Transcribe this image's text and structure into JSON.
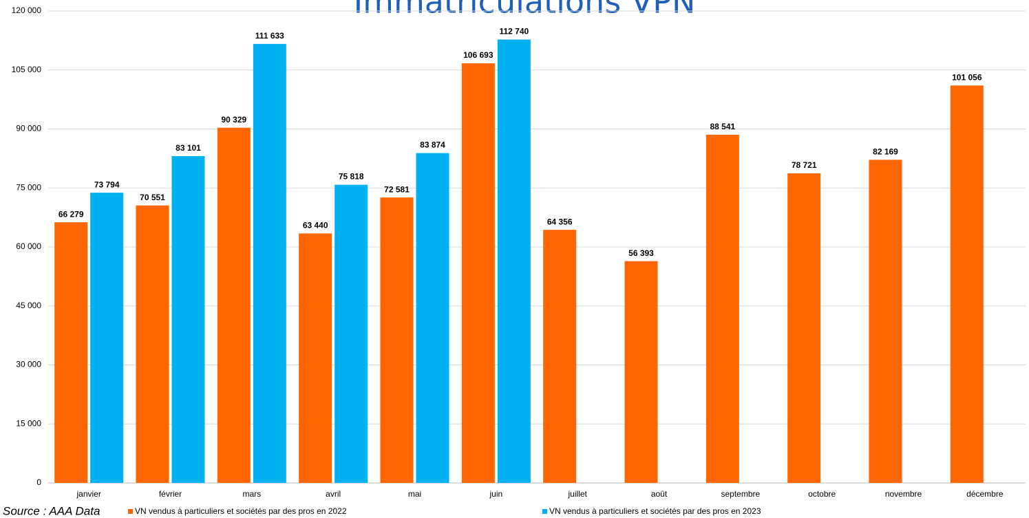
{
  "chart_data": {
    "type": "bar",
    "title": "Immatriculations VPN",
    "source": "Source : AAA Data",
    "categories": [
      "janvier",
      "février",
      "mars",
      "avril",
      "mai",
      "juin",
      "juillet",
      "août",
      "septembre",
      "octobre",
      "novembre",
      "décembre"
    ],
    "series": [
      {
        "name": "VN vendus à particuliers et sociétés par des pros en 2022",
        "color": "#ff6600",
        "values": [
          66279,
          70551,
          90329,
          63440,
          72581,
          106693,
          64356,
          56393,
          88541,
          78721,
          82169,
          101056
        ],
        "value_labels": [
          "66 279",
          "70 551",
          "90 329",
          "63 440",
          "72 581",
          "106 693",
          "64 356",
          "56 393",
          "88 541",
          "78 721",
          "82 169",
          "101 056"
        ]
      },
      {
        "name": "VN vendus à particuliers et sociétés par des pros en 2023",
        "color": "#00b0f0",
        "values": [
          73794,
          83101,
          111633,
          75818,
          83874,
          112740,
          null,
          null,
          null,
          null,
          null,
          null
        ],
        "value_labels": [
          "73 794",
          "83 101",
          "111 633",
          "75 818",
          "83 874",
          "112 740",
          null,
          null,
          null,
          null,
          null,
          null
        ]
      }
    ],
    "ylim": [
      0,
      120000
    ],
    "yticks": [
      0,
      {
        "value": 15000,
        "label": "15 000"
      },
      {
        "value": 30000,
        "label": "30 000"
      },
      {
        "value": 45000,
        "label": "45 000"
      },
      {
        "value": 60000,
        "label": "60 000"
      },
      {
        "value": 75000,
        "label": "75 000"
      },
      {
        "value": 90000,
        "label": "90 000"
      },
      {
        "value": 105000,
        "label": "105 000"
      },
      {
        "value": 120000,
        "label": "120 000"
      }
    ],
    "grid": true,
    "legend": "bottom"
  }
}
